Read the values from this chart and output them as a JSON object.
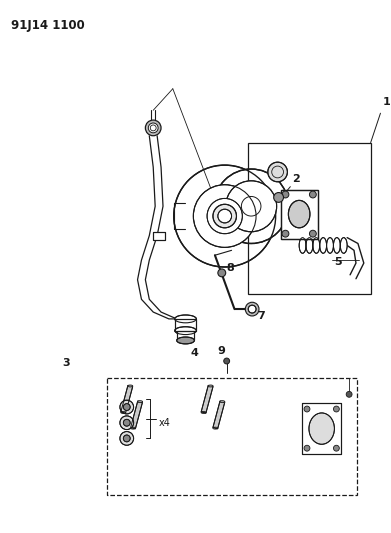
{
  "title_code": "91J14 1100",
  "bg_color": "#ffffff",
  "line_color": "#1a1a1a",
  "fig_width": 3.91,
  "fig_height": 5.33,
  "dpi": 100
}
